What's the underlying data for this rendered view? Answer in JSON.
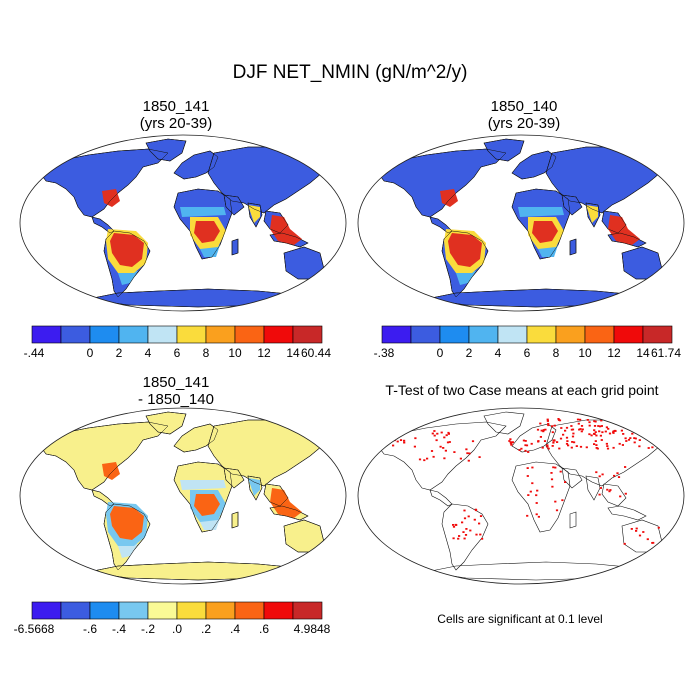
{
  "chart_data": {
    "type": "map",
    "title": "DJF NET_NMIN (gN/m^2/y)",
    "panels": [
      {
        "title_line1": "1850_141",
        "title_line2": "(yrs 20-39)",
        "colorbar": {
          "colors": [
            "#3c1cf0",
            "#3c5ce0",
            "#1e8cf0",
            "#50b4f0",
            "#c0e4f4",
            "#fadc3c",
            "#faa01e",
            "#fa6414",
            "#f00a0a",
            "#c82828"
          ],
          "labels": [
            "-.44",
            "0",
            "2",
            "4",
            "6",
            "8",
            "10",
            "12",
            "14",
            "60.44"
          ]
        },
        "regions": {
          "land": "#3c5ce0",
          "tropics": "#e03020",
          "tropics_edge": "#fadc3c",
          "savanna": "#50b4f0",
          "antarctica": "#3c5ce0"
        }
      },
      {
        "title_line1": "1850_140",
        "title_line2": "(yrs 20-39)",
        "colorbar": {
          "colors": [
            "#3c1cf0",
            "#3c5ce0",
            "#1e8cf0",
            "#50b4f0",
            "#c0e4f4",
            "#fadc3c",
            "#faa01e",
            "#fa6414",
            "#f00a0a",
            "#c82828"
          ],
          "labels": [
            "-.38",
            "0",
            "2",
            "4",
            "6",
            "8",
            "10",
            "12",
            "14",
            "61.74"
          ]
        },
        "regions": {
          "land": "#3c5ce0",
          "tropics": "#e03020",
          "tropics_edge": "#fadc3c",
          "savanna": "#50b4f0",
          "antarctica": "#3c5ce0"
        }
      },
      {
        "title_line1": "1850_141",
        "title_line2": "- 1850_140",
        "colorbar": {
          "colors": [
            "#3c1cf0",
            "#3c5ce0",
            "#1e8cf0",
            "#78c8f0",
            "#fafa96",
            "#fadc3c",
            "#faa01e",
            "#fa6414",
            "#f00a0a",
            "#c82828"
          ],
          "labels": [
            "-6.5668",
            "-.6",
            "-.4",
            "-.2",
            ".0",
            ".2",
            ".4",
            ".6",
            "4.9848"
          ]
        },
        "regions": {
          "land": "#f8f08c",
          "tropics": "#fa6414",
          "tropics_edge": "#78c8f0",
          "savanna": "#c0e4f4",
          "antarctica": "#f8f08c"
        }
      },
      {
        "title": "T-Test of two Case means at each grid point",
        "note": "Cells are significant at 0.1 level",
        "significance_color": "#f00a0a"
      }
    ]
  }
}
